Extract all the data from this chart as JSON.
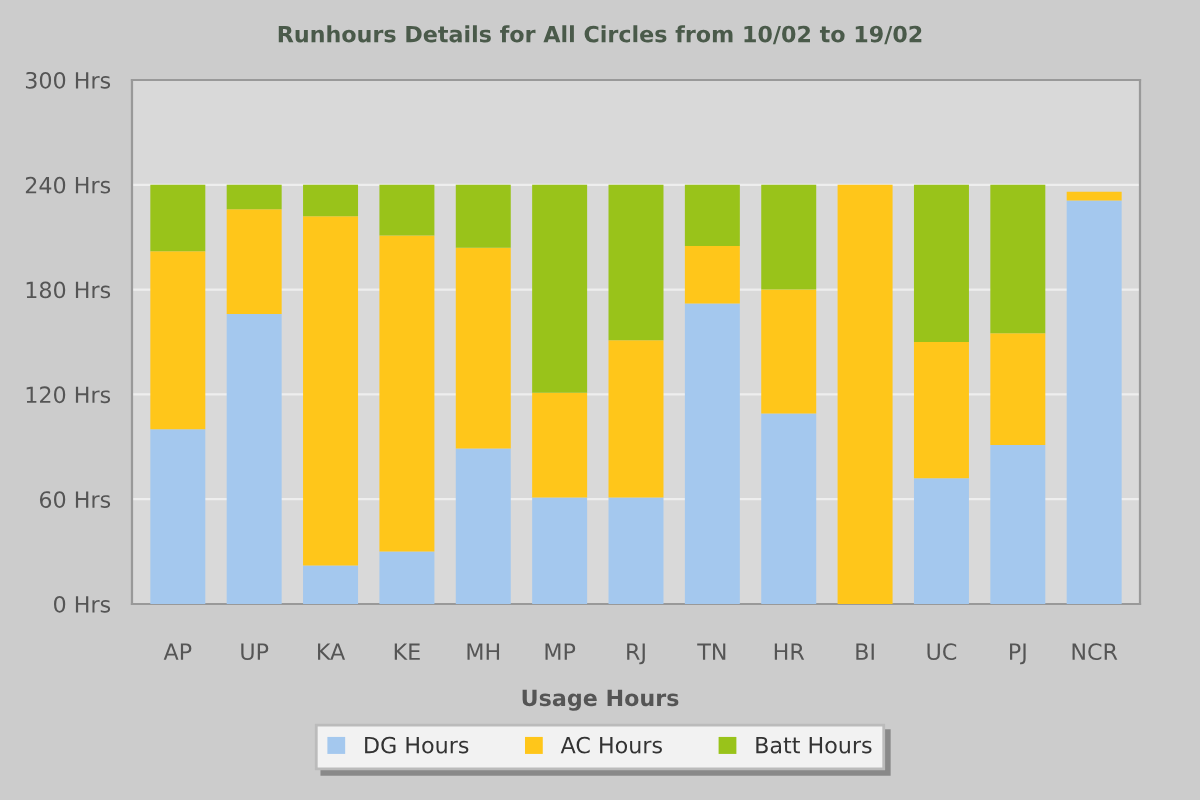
{
  "chart_data": {
    "type": "bar",
    "title": "Runhours Details for All Circles from 10/02 to 19/02",
    "xlabel": "Usage Hours",
    "categories": [
      "AP",
      "UP",
      "KA",
      "KE",
      "MH",
      "MP",
      "RJ",
      "TN",
      "HR",
      "BI",
      "UC",
      "PJ",
      "NCR"
    ],
    "series": [
      {
        "name": "DG Hours",
        "color": "#a4c8ee",
        "values": [
          100,
          166,
          22,
          30,
          89,
          61,
          61,
          172,
          109,
          0,
          72,
          91,
          231
        ]
      },
      {
        "name": "AC Hours",
        "color": "#ffc61a",
        "values": [
          102,
          60,
          200,
          181,
          115,
          60,
          90,
          33,
          71,
          240,
          78,
          64,
          5
        ]
      },
      {
        "name": "Batt Hours",
        "color": "#99c31a",
        "values": [
          38,
          14,
          18,
          29,
          36,
          119,
          89,
          35,
          60,
          0,
          90,
          85,
          0
        ]
      }
    ],
    "stacked": true,
    "ylim": [
      0,
      300
    ],
    "yticks": [
      {
        "value": 0,
        "label": "0 Hrs"
      },
      {
        "value": 60,
        "label": "60 Hrs"
      },
      {
        "value": 120,
        "label": "120 Hrs"
      },
      {
        "value": 180,
        "label": "180 Hrs"
      },
      {
        "value": 240,
        "label": "240 Hrs"
      },
      {
        "value": 300,
        "label": "300 Hrs"
      }
    ],
    "grid": "y",
    "legend": "bottom"
  }
}
